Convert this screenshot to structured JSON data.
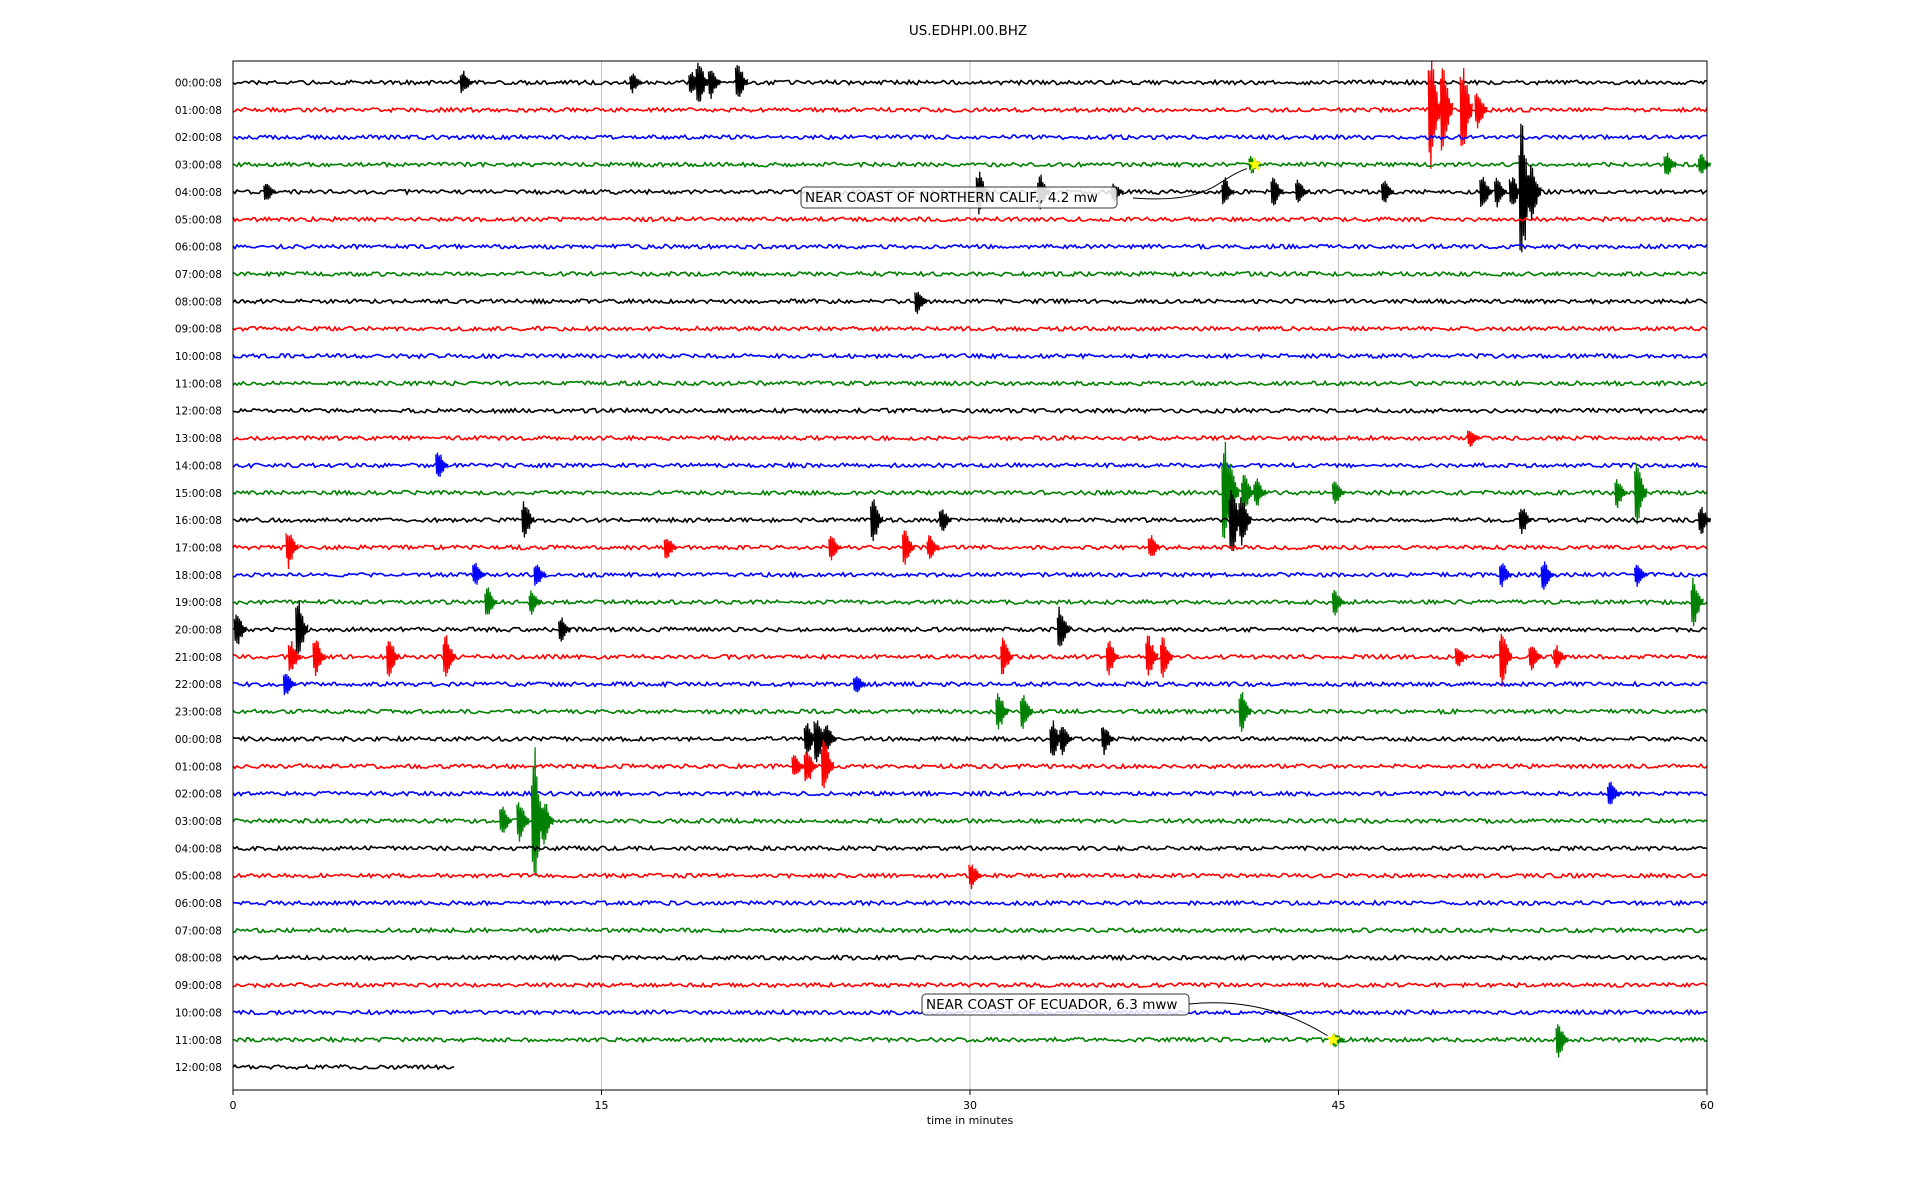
{
  "chart_data": {
    "type": "line",
    "title": "US.EDHPI.00.BHZ",
    "xlabel": "time in minutes",
    "ylabel": "",
    "xlim": [
      0,
      60
    ],
    "x_ticks": [
      0,
      15,
      30,
      45,
      60
    ],
    "grid": "vertical lines at x tick positions",
    "row_labels": [
      "00:00:08",
      "01:00:08",
      "02:00:08",
      "03:00:08",
      "04:00:08",
      "05:00:08",
      "06:00:08",
      "07:00:08",
      "08:00:08",
      "09:00:08",
      "10:00:08",
      "11:00:08",
      "12:00:08",
      "13:00:08",
      "14:00:08",
      "15:00:08",
      "16:00:08",
      "17:00:08",
      "18:00:08",
      "19:00:08",
      "20:00:08",
      "21:00:08",
      "22:00:08",
      "23:00:08",
      "00:00:08",
      "01:00:08",
      "02:00:08",
      "03:00:08",
      "04:00:08",
      "05:00:08",
      "06:00:08",
      "07:00:08",
      "08:00:08",
      "09:00:08",
      "10:00:08",
      "11:00:08",
      "12:00:08"
    ],
    "trace_colors": [
      "#000000",
      "#ff0000",
      "#0000ff",
      "#008000"
    ],
    "last_row_end_minute": 9,
    "spikes": [
      [
        0,
        9.5,
        0.5
      ],
      [
        0,
        16.4,
        0.4
      ],
      [
        0,
        19.1,
        0.9
      ],
      [
        0,
        19.6,
        0.6
      ],
      [
        0,
        20.7,
        0.8
      ],
      [
        0,
        18.8,
        0.5
      ],
      [
        1,
        48.9,
        2.5
      ],
      [
        1,
        49.4,
        1.9
      ],
      [
        1,
        50.2,
        2.0
      ],
      [
        1,
        50.8,
        0.8
      ],
      [
        3,
        41.6,
        0.4
      ],
      [
        3,
        58.5,
        0.5
      ],
      [
        3,
        59.9,
        0.5
      ],
      [
        4,
        1.5,
        0.4
      ],
      [
        4,
        30.5,
        0.9
      ],
      [
        4,
        33.0,
        0.8
      ],
      [
        4,
        36.0,
        0.4
      ],
      [
        4,
        40.5,
        0.6
      ],
      [
        4,
        42.5,
        0.6
      ],
      [
        4,
        43.5,
        0.5
      ],
      [
        4,
        47.0,
        0.5
      ],
      [
        4,
        51.0,
        0.7
      ],
      [
        4,
        51.6,
        0.6
      ],
      [
        4,
        52.2,
        0.7
      ],
      [
        4,
        52.6,
        3.0
      ],
      [
        4,
        53.0,
        1.2
      ],
      [
        8,
        28.0,
        0.5
      ],
      [
        13,
        50.5,
        0.4
      ],
      [
        14,
        8.5,
        0.6
      ],
      [
        15,
        40.5,
        2.2
      ],
      [
        15,
        40.7,
        1.5
      ],
      [
        15,
        41.3,
        0.8
      ],
      [
        15,
        41.8,
        0.6
      ],
      [
        15,
        45.0,
        0.5
      ],
      [
        15,
        56.5,
        0.6
      ],
      [
        15,
        57.3,
        1.2
      ],
      [
        16,
        12.0,
        0.8
      ],
      [
        16,
        26.2,
        0.9
      ],
      [
        16,
        29.0,
        0.5
      ],
      [
        16,
        40.8,
        1.5
      ],
      [
        16,
        41.2,
        1.0
      ],
      [
        16,
        52.6,
        0.6
      ],
      [
        16,
        59.9,
        0.6
      ],
      [
        17,
        2.4,
        0.8
      ],
      [
        17,
        17.8,
        0.5
      ],
      [
        17,
        24.5,
        0.5
      ],
      [
        17,
        27.5,
        0.7
      ],
      [
        17,
        28.5,
        0.5
      ],
      [
        17,
        37.5,
        0.5
      ],
      [
        18,
        10.0,
        0.5
      ],
      [
        18,
        12.5,
        0.5
      ],
      [
        18,
        51.8,
        0.5
      ],
      [
        18,
        53.5,
        0.6
      ],
      [
        18,
        57.3,
        0.5
      ],
      [
        19,
        10.5,
        0.6
      ],
      [
        19,
        12.3,
        0.5
      ],
      [
        19,
        45.0,
        0.5
      ],
      [
        19,
        59.6,
        1.0
      ],
      [
        20,
        0.3,
        0.7
      ],
      [
        20,
        2.8,
        1.2
      ],
      [
        20,
        13.5,
        0.5
      ],
      [
        20,
        33.8,
        1.0
      ],
      [
        21,
        2.5,
        0.7
      ],
      [
        21,
        3.5,
        0.8
      ],
      [
        21,
        6.5,
        0.8
      ],
      [
        21,
        8.8,
        1.0
      ],
      [
        21,
        31.5,
        0.8
      ],
      [
        21,
        35.8,
        0.7
      ],
      [
        21,
        37.4,
        0.9
      ],
      [
        21,
        38.0,
        0.8
      ],
      [
        21,
        50.0,
        0.5
      ],
      [
        21,
        51.8,
        1.2
      ],
      [
        21,
        53.0,
        0.6
      ],
      [
        21,
        54.0,
        0.5
      ],
      [
        22,
        2.3,
        0.5
      ],
      [
        22,
        25.5,
        0.4
      ],
      [
        23,
        31.3,
        0.8
      ],
      [
        23,
        32.3,
        0.8
      ],
      [
        23,
        41.2,
        0.8
      ],
      [
        24,
        23.5,
        0.7
      ],
      [
        24,
        23.9,
        1.0
      ],
      [
        24,
        24.3,
        0.6
      ],
      [
        24,
        33.5,
        0.8
      ],
      [
        24,
        33.9,
        0.6
      ],
      [
        24,
        35.6,
        0.6
      ],
      [
        25,
        23.0,
        0.5
      ],
      [
        25,
        23.5,
        0.8
      ],
      [
        25,
        24.2,
        1.1
      ],
      [
        26,
        56.2,
        0.5
      ],
      [
        27,
        11.1,
        0.6
      ],
      [
        27,
        11.8,
        0.9
      ],
      [
        27,
        12.4,
        3.0
      ],
      [
        27,
        12.8,
        0.9
      ],
      [
        29,
        30.2,
        0.6
      ],
      [
        35,
        45.0,
        0.3
      ],
      [
        35,
        54.1,
        0.7
      ]
    ],
    "annotations": [
      {
        "text": "NEAR COAST OF NORTHERN CALIF., 4.2 mw",
        "row": 3,
        "x_minute": 41.6
      },
      {
        "text": "NEAR COAST OF ECUADOR, 6.3 mww",
        "row": 35,
        "x_minute": 44.8
      }
    ]
  }
}
